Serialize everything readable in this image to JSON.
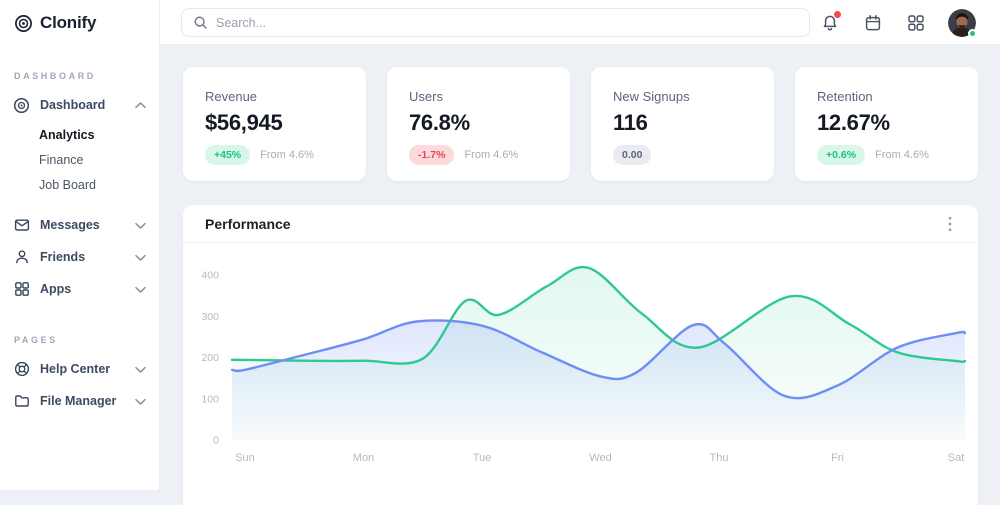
{
  "brand": {
    "name": "Clonify"
  },
  "topbar": {
    "search_placeholder": "Search...",
    "bell_has_notification": true,
    "avatar_status": "online"
  },
  "sidebar": {
    "sections": [
      {
        "label": "DASHBOARD",
        "items": [
          {
            "label": "Dashboard",
            "icon": "dashboard-icon",
            "expanded": true,
            "children": [
              {
                "label": "Analytics",
                "active": true
              },
              {
                "label": "Finance",
                "active": false
              },
              {
                "label": "Job Board",
                "active": false
              }
            ]
          },
          {
            "label": "Messages",
            "icon": "envelope-icon"
          },
          {
            "label": "Friends",
            "icon": "person-icon"
          },
          {
            "label": "Apps",
            "icon": "grid-icon"
          }
        ]
      },
      {
        "label": "PAGES",
        "items": [
          {
            "label": "Help Center",
            "icon": "lifebuoy-icon"
          },
          {
            "label": "File Manager",
            "icon": "folder-icon"
          }
        ]
      }
    ]
  },
  "stats": [
    {
      "label": "Revenue",
      "value": "$56,945",
      "badge": "+45%",
      "badge_type": "positive",
      "note": "From 4.6%"
    },
    {
      "label": "Users",
      "value": "76.8%",
      "badge": "-1.7%",
      "badge_type": "negative",
      "note": "From 4.6%"
    },
    {
      "label": "New Signups",
      "value": "116",
      "badge": "0.00",
      "badge_type": "neutral",
      "note": ""
    },
    {
      "label": "Retention",
      "value": "12.67%",
      "badge": "+0.6%",
      "badge_type": "positive",
      "note": "From 4.6%"
    }
  ],
  "performance": {
    "title": "Performance"
  },
  "colors": {
    "series_green": "#2ec98e",
    "series_blue": "#6e8ef6",
    "positive": "#17c28a",
    "negative": "#e5484d",
    "notification_red": "#f14d4d",
    "online_green": "#27c26c",
    "background": "#edf0f5"
  },
  "chart_data": {
    "type": "area",
    "title": "Performance",
    "categories": [
      "Sun",
      "Mon",
      "Tue",
      "Wed",
      "Thu",
      "Fri",
      "Sat"
    ],
    "yticks": [
      0,
      100,
      200,
      300,
      400
    ],
    "ylim": [
      0,
      440
    ],
    "grid": false,
    "legend": false,
    "series": [
      {
        "name": "green",
        "color": "#2ec98e",
        "values": [
          193,
          191,
          310,
          410,
          258,
          290,
          190
        ],
        "points": [
          [
            0,
            193
          ],
          [
            0.5,
            191
          ],
          [
            1,
            191
          ],
          [
            1.5,
            196
          ],
          [
            1.86,
            336
          ],
          [
            2.14,
            302
          ],
          [
            2.55,
            372
          ],
          [
            2.9,
            416
          ],
          [
            3.35,
            305
          ],
          [
            3.83,
            223
          ],
          [
            4.6,
            347
          ],
          [
            5.1,
            280
          ],
          [
            5.5,
            212
          ],
          [
            6,
            190
          ]
        ]
      },
      {
        "name": "blue",
        "color": "#6e8ef6",
        "values": [
          169,
          243,
          276,
          153,
          235,
          130,
          258
        ],
        "points": [
          [
            0,
            169
          ],
          [
            0.5,
            205
          ],
          [
            1,
            243
          ],
          [
            1.45,
            286
          ],
          [
            2,
            276
          ],
          [
            2.5,
            212
          ],
          [
            3,
            153
          ],
          [
            3.3,
            162
          ],
          [
            3.78,
            277
          ],
          [
            4.05,
            232
          ],
          [
            4.55,
            106
          ],
          [
            5,
            131
          ],
          [
            5.5,
            222
          ],
          [
            6,
            258
          ]
        ]
      }
    ]
  }
}
